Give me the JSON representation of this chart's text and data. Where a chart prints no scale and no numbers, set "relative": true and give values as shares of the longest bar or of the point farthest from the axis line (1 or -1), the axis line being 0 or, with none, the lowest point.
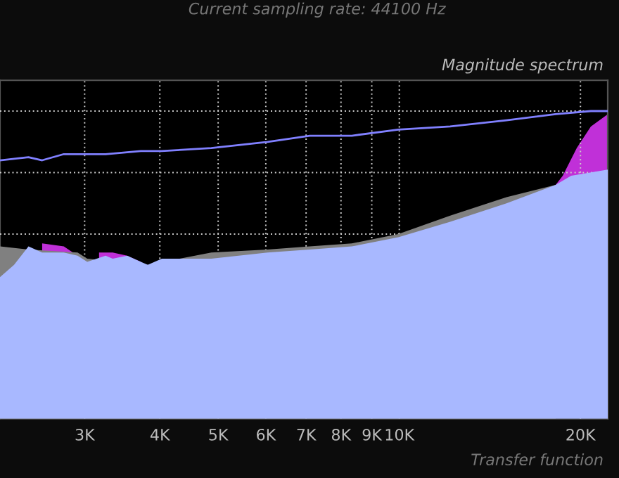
{
  "chart_data": {
    "type": "area",
    "title": "Magnitude spectrum",
    "relative": true,
    "log": "x",
    "grid": true,
    "xlim": [
      2170,
      22200
    ],
    "xticks": [
      {
        "value": 3000,
        "label": "3K"
      },
      {
        "value": 4000,
        "label": "4K"
      },
      {
        "value": 5000,
        "label": "5K"
      },
      {
        "value": 6000,
        "label": "6K"
      },
      {
        "value": 7000,
        "label": "7K"
      },
      {
        "value": 8000,
        "label": "8K"
      },
      {
        "value": 9000,
        "label": "9K"
      },
      {
        "value": 10000,
        "label": "10K"
      },
      {
        "value": 20000,
        "label": "20K"
      }
    ],
    "annotations": [
      "Current sampling rate: 44100 Hz",
      "Transfer function"
    ],
    "series": [
      {
        "color": "#c030d8",
        "x": [
          2550,
          2770,
          2920,
          3030,
          3170,
          3340,
          3530,
          3620,
          3720,
          4870,
          6040,
          7100,
          8340,
          9960,
          12150,
          15070,
          18190,
          18690,
          19720,
          20810,
          22200
        ],
        "values": [
          0.57,
          0.56,
          0.53,
          null,
          0.54,
          0.54,
          0.53,
          0.52,
          0.51,
          null,
          null,
          null,
          null,
          null,
          null,
          null,
          0.76,
          0.79,
          0.88,
          0.95,
          0.99
        ]
      },
      {
        "color": "#808080",
        "x": [
          2170,
          2420,
          2920,
          3030,
          3820,
          4870,
          6040,
          7100,
          8340,
          9960,
          12150,
          15070,
          18190
        ],
        "values": [
          0.56,
          0.55,
          0.54,
          0.52,
          0.5,
          0.54,
          0.55,
          0.56,
          0.57,
          0.6,
          0.66,
          0.72,
          0.76
        ]
      },
      {
        "color": "#a8b8ff",
        "x": [
          2170,
          2290,
          2420,
          2550,
          2770,
          2920,
          3030,
          3250,
          3340,
          3530,
          3720,
          3820,
          4030,
          4870,
          6040,
          7100,
          8340,
          9960,
          12150,
          15070,
          18190,
          19300,
          22200
        ],
        "values": [
          0.46,
          0.5,
          0.56,
          0.54,
          0.54,
          0.53,
          0.51,
          0.53,
          0.52,
          0.53,
          0.51,
          0.5,
          0.52,
          0.52,
          0.54,
          0.55,
          0.56,
          0.59,
          0.64,
          0.7,
          0.76,
          0.79,
          0.81
        ]
      },
      {
        "type": "line",
        "color": "#8080ff",
        "x": [
          2170,
          2420,
          2550,
          2770,
          3030,
          3250,
          3720,
          4030,
          4870,
          6040,
          7100,
          8340,
          9960,
          12150,
          15070,
          18190,
          20810,
          22200
        ],
        "values": [
          0.84,
          0.85,
          0.84,
          0.86,
          0.86,
          0.86,
          0.87,
          0.87,
          0.88,
          0.9,
          0.92,
          0.92,
          0.94,
          0.95,
          0.97,
          0.99,
          1.0,
          1.0
        ]
      }
    ]
  }
}
